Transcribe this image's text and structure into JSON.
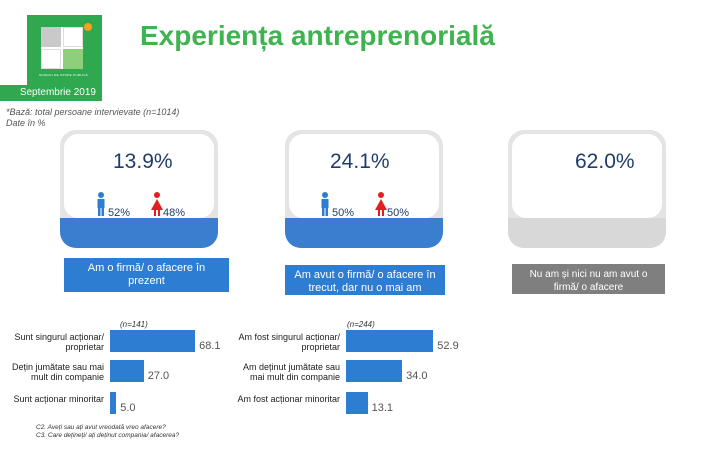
{
  "header": {
    "title": "Experiența antreprenorială",
    "date": "Septembrie 2019",
    "logo_text": "SONDAJ DE OPINIE PUBLICĂ"
  },
  "base_note": [
    "*Bază: total persoane intervievate (n=1014)",
    "Date în %"
  ],
  "cards": [
    {
      "pct": "13.9%",
      "male_pct": "52%",
      "female_pct": "48%",
      "label": "Am o firmă/ o afacere în prezent"
    },
    {
      "pct": "24.1%",
      "male_pct": "50%",
      "female_pct": "50%",
      "label": "Am avut o firmă/ o afacere în trecut, dar nu o mai am"
    },
    {
      "pct": "62.0%",
      "label": "Nu am și nici nu am avut o firmă/ o afacere"
    }
  ],
  "colors": {
    "title_green": "#3fb34f",
    "bar_blue": "#2d7dd2",
    "female_red": "#e02020",
    "male_blue": "#2d7dd2"
  },
  "chart_data": [
    {
      "type": "bar",
      "orientation": "horizontal",
      "n_note": "(n=141)",
      "categories": [
        "Sunt singurul acționar/ proprietar",
        "Dețin jumătate sau mai mult din companie",
        "Sunt acționar minoritar"
      ],
      "values": [
        68.1,
        27.0,
        5.0
      ],
      "value_labels": [
        "68.1",
        "27.0",
        "5.0"
      ],
      "xlim": [
        0,
        100
      ]
    },
    {
      "type": "bar",
      "orientation": "horizontal",
      "n_note": "(n=244)",
      "categories": [
        "Am fost singurul acționar/ proprietar",
        "Am deținut jumătate sau mai mult din companie",
        "Am fost acționar minoritar"
      ],
      "values": [
        52.9,
        34.0,
        13.1
      ],
      "value_labels": [
        "52.9",
        "34.0",
        "13.1"
      ],
      "xlim": [
        0,
        100
      ]
    }
  ],
  "footnote": [
    "C2. Aveți sau ați avut vreodată vreo afacere?",
    "C3. Care dețineți/ ați deținut compania/ afacerea?"
  ]
}
